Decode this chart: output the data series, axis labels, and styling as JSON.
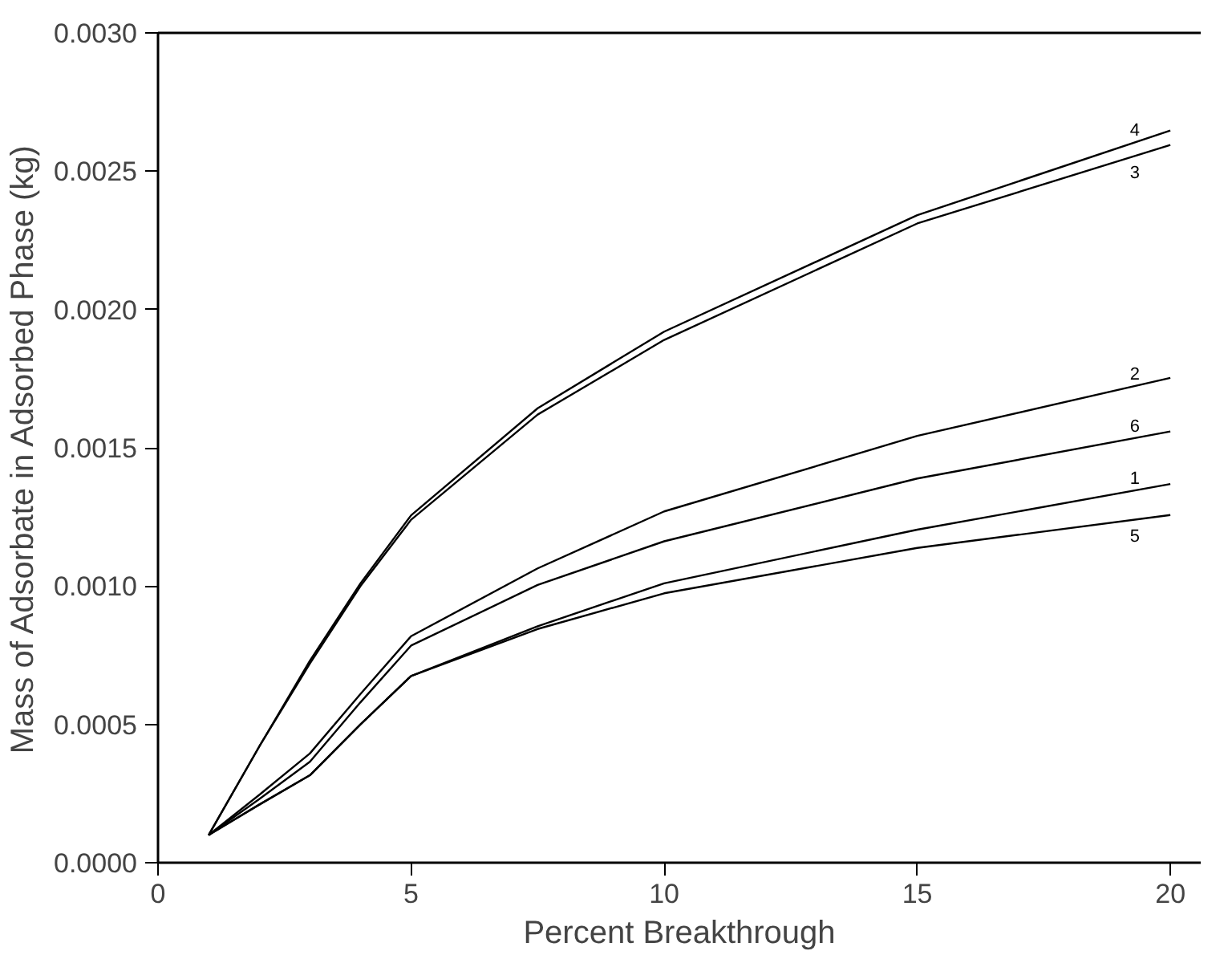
{
  "chart_data": {
    "type": "line",
    "xlabel": "Percent Breakthrough",
    "ylabel": "Mass of Adsorbate in Adsorbed Phase (kg)",
    "xlim": [
      0,
      20.6
    ],
    "ylim": [
      0,
      0.003
    ],
    "xticks": [
      0,
      5,
      10,
      15,
      20
    ],
    "yticks": [
      {
        "value": 0,
        "label": "0.0000"
      },
      {
        "value": 0.0005,
        "label": "0.0005"
      },
      {
        "value": 0.001,
        "label": "0.0010"
      },
      {
        "value": 0.0015,
        "label": "0.0015"
      },
      {
        "value": 0.002,
        "label": "0.0020"
      },
      {
        "value": 0.0025,
        "label": "0.0025"
      },
      {
        "value": 0.003,
        "label": "0.0030"
      }
    ],
    "x": [
      1,
      2,
      3,
      4,
      5,
      7.5,
      10,
      15,
      20
    ],
    "series": [
      {
        "name": "4",
        "color": "#000000",
        "values": [
          0.0001,
          0.00042,
          0.00073,
          0.00101,
          0.001256,
          0.001643,
          0.00192,
          0.002341,
          0.002647
        ]
      },
      {
        "name": "3",
        "color": "#000000",
        "values": [
          0.0001,
          0.00042,
          0.00072,
          0.001,
          0.00124,
          0.00162,
          0.00189,
          0.002311,
          0.002595
        ]
      },
      {
        "name": "2",
        "color": "#000000",
        "values": [
          0.0001,
          0.000245,
          0.000395,
          0.00061,
          0.000819,
          0.001064,
          0.00127,
          0.001543,
          0.001753
        ]
      },
      {
        "name": "6",
        "color": "#000000",
        "values": [
          0.0001,
          0.00023,
          0.000365,
          0.00058,
          0.000785,
          0.001004,
          0.001162,
          0.001389,
          0.001559
        ]
      },
      {
        "name": "1",
        "color": "#000000",
        "values": [
          0.0001,
          0.00021,
          0.000316,
          0.0005,
          0.000675,
          0.000855,
          0.00101,
          0.001204,
          0.001369
        ]
      },
      {
        "name": "5",
        "color": "#000000",
        "values": [
          0.0001,
          0.00021,
          0.000316,
          0.0005,
          0.000675,
          0.000845,
          0.000974,
          0.001138,
          0.001257
        ]
      }
    ],
    "grid": false,
    "legend": false,
    "line_style": "solid",
    "marker": "none"
  }
}
